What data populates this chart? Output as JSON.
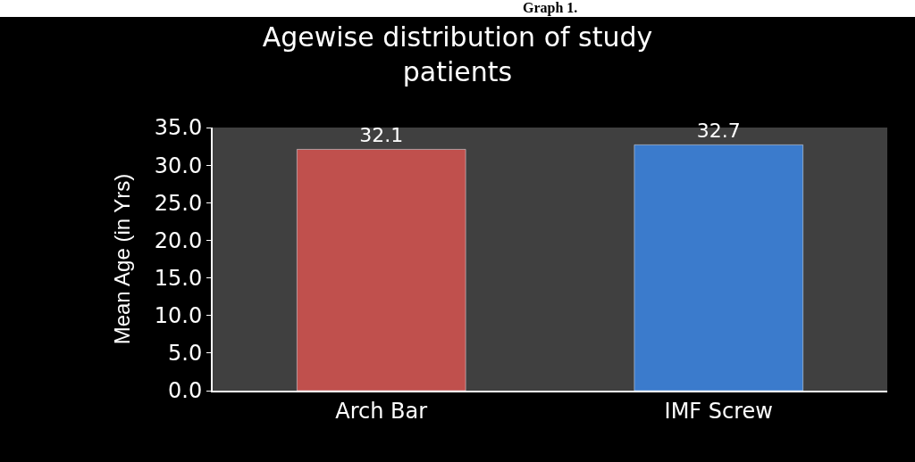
{
  "chart_data": {
    "type": "bar",
    "title": "Agewise distribution of study patients",
    "ylabel": "Mean Age (in Yrs)",
    "annotations": [
      "Graph 1."
    ],
    "categories": [
      "Arch Bar",
      "IMF Screw"
    ],
    "values": [
      32.1,
      32.7
    ],
    "colors": [
      "#c0504d",
      "#3b7bcc"
    ],
    "data_labels": true,
    "ylim": [
      0,
      35
    ],
    "yticks": [
      {
        "value": 0,
        "label": "0.0"
      },
      {
        "value": 5,
        "label": "5.0"
      },
      {
        "value": 10,
        "label": "10.0"
      },
      {
        "value": 15,
        "label": "15.0"
      },
      {
        "value": 20,
        "label": "20.0"
      },
      {
        "value": 25,
        "label": "25.0"
      },
      {
        "value": 30,
        "label": "30.0"
      },
      {
        "value": 35,
        "label": "35.0"
      }
    ],
    "grid": false
  }
}
